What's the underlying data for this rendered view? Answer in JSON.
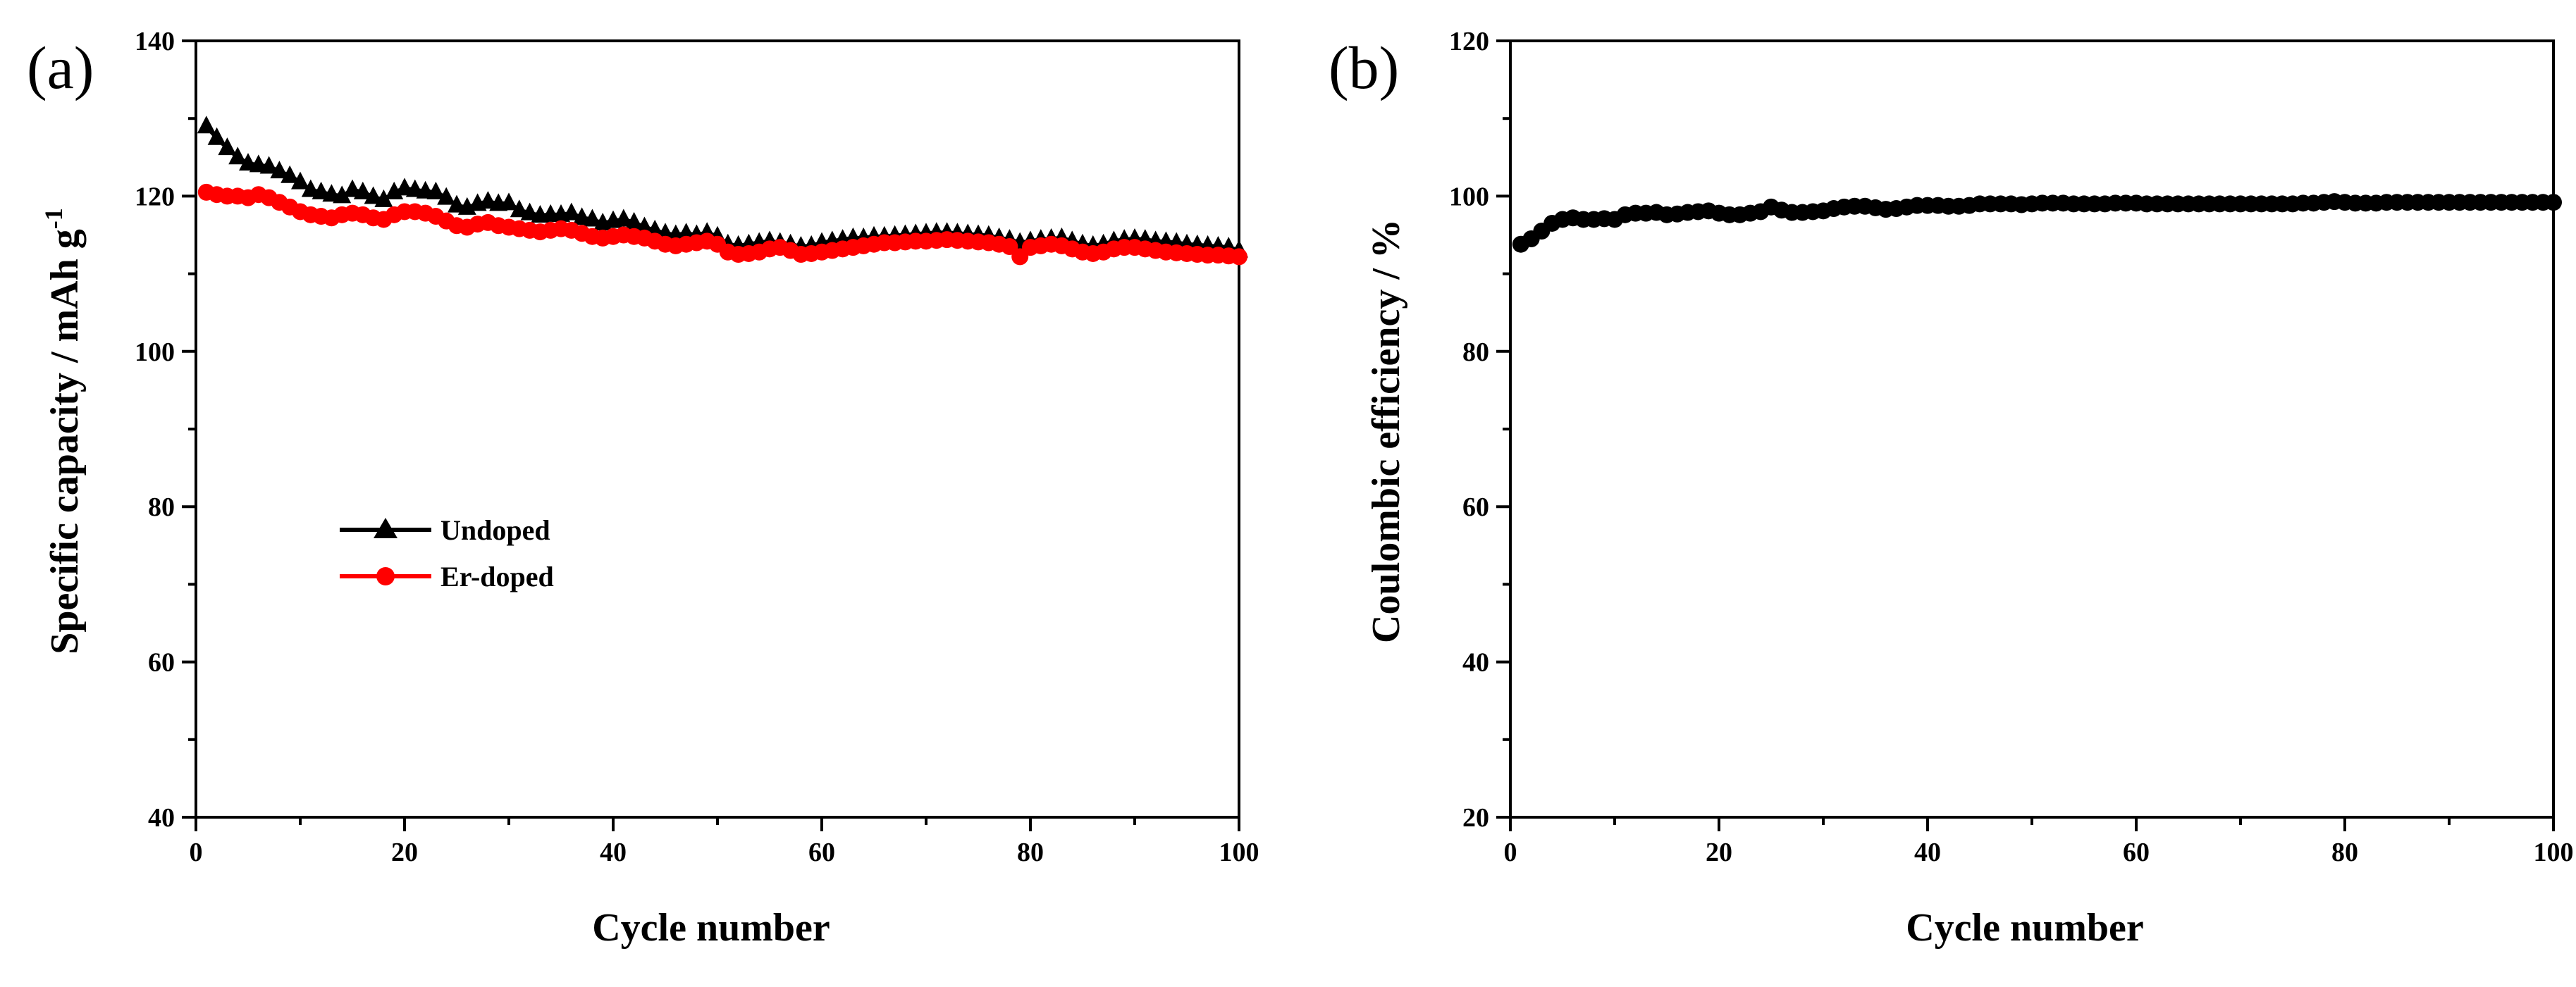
{
  "chart_data": [
    {
      "id": "a",
      "panel_label": "(a)",
      "type": "line",
      "xlabel": "Cycle number",
      "ylabel_main": "Specific capacity / mAh g",
      "ylabel_superscript": "-1",
      "xlim": [
        0,
        100
      ],
      "ylim": [
        40,
        140
      ],
      "xticks": [
        0,
        20,
        40,
        60,
        80,
        100
      ],
      "yticks": [
        40,
        60,
        80,
        100,
        120,
        140
      ],
      "legend_position": "center-left",
      "series": [
        {
          "name": "Undoped",
          "color": "#000000",
          "marker": "triangle",
          "x": [
            1,
            2,
            3,
            4,
            5,
            6,
            7,
            8,
            9,
            10,
            11,
            12,
            13,
            14,
            15,
            16,
            17,
            18,
            19,
            20,
            21,
            22,
            23,
            24,
            25,
            26,
            27,
            28,
            29,
            30,
            31,
            32,
            33,
            34,
            35,
            36,
            37,
            38,
            39,
            40,
            41,
            42,
            43,
            44,
            45,
            46,
            47,
            48,
            49,
            50,
            51,
            52,
            53,
            54,
            55,
            56,
            57,
            58,
            59,
            60,
            61,
            62,
            63,
            64,
            65,
            66,
            67,
            68,
            69,
            70,
            71,
            72,
            73,
            74,
            75,
            76,
            77,
            78,
            79,
            80,
            81,
            82,
            83,
            84,
            85,
            86,
            87,
            88,
            89,
            90,
            91,
            92,
            93,
            94,
            95,
            96,
            97,
            98,
            99,
            100
          ],
          "y": [
            129.0,
            127.5,
            126.2,
            125.0,
            124.2,
            124.0,
            123.8,
            123.2,
            122.6,
            121.8,
            120.8,
            120.5,
            120.2,
            120.0,
            120.8,
            120.5,
            119.9,
            119.5,
            120.5,
            121.0,
            120.8,
            120.6,
            120.5,
            119.8,
            118.8,
            118.5,
            119.0,
            119.3,
            119.0,
            119.1,
            118.2,
            117.8,
            117.5,
            117.6,
            117.6,
            117.8,
            117.2,
            117.0,
            116.5,
            116.8,
            117.0,
            116.6,
            116.0,
            115.6,
            115.2,
            115.0,
            115.2,
            115.0,
            115.3,
            114.8,
            113.8,
            113.6,
            113.8,
            114.0,
            114.2,
            114.0,
            113.8,
            113.5,
            113.6,
            114.0,
            114.2,
            114.4,
            114.6,
            114.6,
            114.8,
            114.8,
            114.9,
            115.0,
            115.1,
            115.2,
            115.3,
            115.3,
            115.2,
            115.1,
            115.0,
            114.9,
            114.6,
            114.4,
            114.0,
            114.2,
            114.4,
            114.5,
            114.6,
            114.2,
            113.8,
            113.6,
            113.8,
            114.2,
            114.4,
            114.5,
            114.4,
            114.2,
            114.1,
            114.0,
            113.8,
            113.7,
            113.6,
            113.5,
            113.4,
            113.0
          ]
        },
        {
          "name": "Er-doped",
          "color": "#ff0000",
          "marker": "circle",
          "x": [
            1,
            2,
            3,
            4,
            5,
            6,
            7,
            8,
            9,
            10,
            11,
            12,
            13,
            14,
            15,
            16,
            17,
            18,
            19,
            20,
            21,
            22,
            23,
            24,
            25,
            26,
            27,
            28,
            29,
            30,
            31,
            32,
            33,
            34,
            35,
            36,
            37,
            38,
            39,
            40,
            41,
            42,
            43,
            44,
            45,
            46,
            47,
            48,
            49,
            50,
            51,
            52,
            53,
            54,
            55,
            56,
            57,
            58,
            59,
            60,
            61,
            62,
            63,
            64,
            65,
            66,
            67,
            68,
            69,
            70,
            71,
            72,
            73,
            74,
            75,
            76,
            77,
            78,
            79,
            80,
            81,
            82,
            83,
            84,
            85,
            86,
            87,
            88,
            89,
            90,
            91,
            92,
            93,
            94,
            95,
            96,
            97,
            98,
            99,
            100
          ],
          "y": [
            120.5,
            120.2,
            120.0,
            120.0,
            119.8,
            120.2,
            119.8,
            119.2,
            118.6,
            118.0,
            117.6,
            117.4,
            117.2,
            117.6,
            117.8,
            117.6,
            117.2,
            117.0,
            117.6,
            118.0,
            118.0,
            117.8,
            117.4,
            116.8,
            116.2,
            116.0,
            116.4,
            116.6,
            116.2,
            116.0,
            115.8,
            115.6,
            115.4,
            115.6,
            115.8,
            115.6,
            115.2,
            114.8,
            114.6,
            114.8,
            115.0,
            114.8,
            114.6,
            114.2,
            113.8,
            113.6,
            113.8,
            114.0,
            114.2,
            113.8,
            112.8,
            112.5,
            112.6,
            112.8,
            113.2,
            113.4,
            113.0,
            112.5,
            112.6,
            112.8,
            113.0,
            113.2,
            113.4,
            113.6,
            113.8,
            114.0,
            114.0,
            114.1,
            114.2,
            114.2,
            114.3,
            114.4,
            114.3,
            114.2,
            114.1,
            114.0,
            113.8,
            113.5,
            112.2,
            113.4,
            113.6,
            113.8,
            113.6,
            113.2,
            112.8,
            112.6,
            112.8,
            113.2,
            113.4,
            113.4,
            113.2,
            113.0,
            112.8,
            112.7,
            112.6,
            112.5,
            112.4,
            112.4,
            112.3,
            112.2
          ]
        }
      ]
    },
    {
      "id": "b",
      "panel_label": "(b)",
      "type": "line",
      "xlabel": "Cycle number",
      "ylabel_main": "Coulombic efficiency / %",
      "xlim": [
        0,
        100
      ],
      "ylim": [
        20,
        120
      ],
      "xticks": [
        0,
        20,
        40,
        60,
        80,
        100
      ],
      "yticks": [
        20,
        40,
        60,
        80,
        100,
        120
      ],
      "series": [
        {
          "name": "Coulombic efficiency",
          "color": "#000000",
          "marker": "circle",
          "x": [
            1,
            2,
            3,
            4,
            5,
            6,
            7,
            8,
            9,
            10,
            11,
            12,
            13,
            14,
            15,
            16,
            17,
            18,
            19,
            20,
            21,
            22,
            23,
            24,
            25,
            26,
            27,
            28,
            29,
            30,
            31,
            32,
            33,
            34,
            35,
            36,
            37,
            38,
            39,
            40,
            41,
            42,
            43,
            44,
            45,
            46,
            47,
            48,
            49,
            50,
            51,
            52,
            53,
            54,
            55,
            56,
            57,
            58,
            59,
            60,
            61,
            62,
            63,
            64,
            65,
            66,
            67,
            68,
            69,
            70,
            71,
            72,
            73,
            74,
            75,
            76,
            77,
            78,
            79,
            80,
            81,
            82,
            83,
            84,
            85,
            86,
            87,
            88,
            89,
            90,
            91,
            92,
            93,
            94,
            95,
            96,
            97,
            98,
            99,
            100
          ],
          "y": [
            93.8,
            94.5,
            95.5,
            96.5,
            97.0,
            97.2,
            97.0,
            97.0,
            97.1,
            97.0,
            97.6,
            97.8,
            97.8,
            97.9,
            97.6,
            97.7,
            97.9,
            98.0,
            98.1,
            97.8,
            97.6,
            97.6,
            97.8,
            98.0,
            98.6,
            98.2,
            97.9,
            97.9,
            98.0,
            98.1,
            98.4,
            98.6,
            98.7,
            98.7,
            98.5,
            98.3,
            98.4,
            98.6,
            98.8,
            98.8,
            98.8,
            98.7,
            98.7,
            98.8,
            99.0,
            99.0,
            99.0,
            99.0,
            98.9,
            99.0,
            99.1,
            99.1,
            99.1,
            99.0,
            99.0,
            99.0,
            99.0,
            99.1,
            99.1,
            99.1,
            99.0,
            99.0,
            99.0,
            99.0,
            99.0,
            99.0,
            99.0,
            99.0,
            99.0,
            99.0,
            99.0,
            99.0,
            99.0,
            99.0,
            99.0,
            99.1,
            99.1,
            99.2,
            99.3,
            99.2,
            99.1,
            99.1,
            99.1,
            99.2,
            99.2,
            99.2,
            99.2,
            99.2,
            99.2,
            99.2,
            99.2,
            99.2,
            99.2,
            99.2,
            99.2,
            99.2,
            99.2,
            99.2,
            99.2,
            99.2
          ]
        }
      ]
    }
  ]
}
